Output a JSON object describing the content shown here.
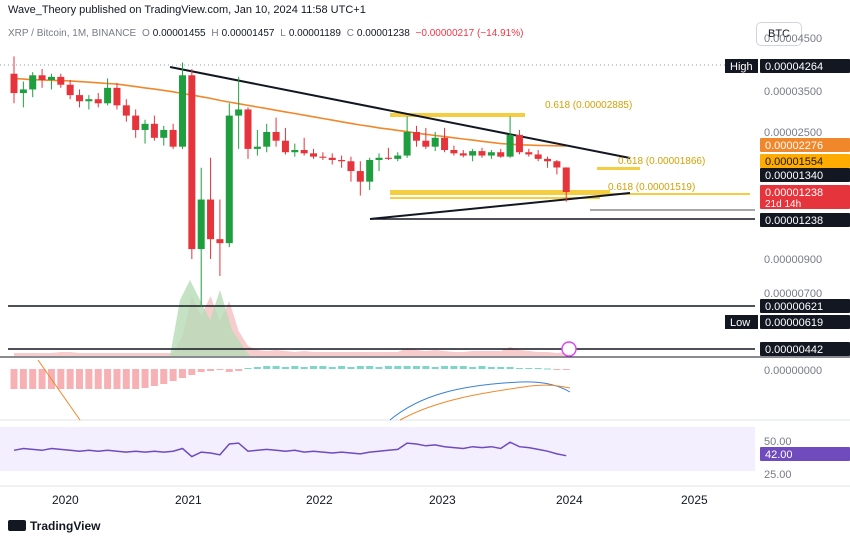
{
  "caption": "Wave_Theory published on TradingView.com, Jan 10, 2024 11:58 UTC+1",
  "legend": {
    "symbol": "XRP / Bitcoin, 1M, BINANCE",
    "open_label": "O",
    "open": "0.00001455",
    "high_label": "H",
    "high": "0.00001457",
    "low_label": "L",
    "low": "0.00001189",
    "close_label": "C",
    "close": "0.00001238",
    "change": "−0.00000217 (−14.91%)"
  },
  "currency_button": "BTC",
  "footer": "TradingView",
  "colors": {
    "up": "#26a69a",
    "up_body": "#1e9e3e",
    "down": "#e5343b",
    "ema": "#f0882b",
    "fib": "#f2c012",
    "trend": "#131722",
    "macd": "#3a7fd9",
    "signal": "#f0882b",
    "rsi": "#6f4bbd",
    "alert_icon": "#e040fb"
  },
  "chart_data": {
    "type": "candlestick",
    "timeframe": "1M",
    "x_axis_labels": [
      "2020",
      "2021",
      "2022",
      "2023",
      "2024",
      "2025"
    ],
    "y_axis_labels": [
      "0.00004500",
      "0.00003500",
      "0.00002500",
      "0.00000900",
      "0.00000700",
      "0.00000000",
      "50.00",
      "25.00"
    ],
    "price_tags": [
      {
        "label": "High",
        "value": "0.00004264",
        "style": "dark"
      },
      {
        "value": "0.00002276",
        "style": "orange"
      },
      {
        "value": "0.00001554",
        "style": "yellow"
      },
      {
        "value": "0.00001340",
        "style": "dark"
      },
      {
        "value": "0.00001238",
        "sub": "21d 14h",
        "style": "red"
      },
      {
        "value": "0.00001238",
        "style": "dark"
      },
      {
        "value": "0.00000621",
        "style": "dark"
      },
      {
        "label": "Low",
        "value": "0.00000619",
        "style": "dark"
      },
      {
        "value": "0.00000442",
        "style": "dark"
      },
      {
        "value": "42.00",
        "style": "purple"
      }
    ],
    "fib_labels": [
      {
        "text": "0.618 (0.00002885)",
        "value": 2.885e-05
      },
      {
        "text": "0.618 (0.00001866)",
        "value": 1.866e-05
      },
      {
        "text": "0.618 (0.00001519)",
        "value": 1.519e-05
      }
    ],
    "candles": [
      {
        "o": 4.05,
        "h": 4.35,
        "l": 3.2,
        "c": 3.45
      },
      {
        "o": 3.45,
        "h": 3.8,
        "l": 3.1,
        "c": 3.55
      },
      {
        "o": 3.55,
        "h": 4.1,
        "l": 3.35,
        "c": 4.0
      },
      {
        "o": 4.0,
        "h": 4.2,
        "l": 3.6,
        "c": 3.85
      },
      {
        "o": 3.85,
        "h": 4.05,
        "l": 3.55,
        "c": 3.95
      },
      {
        "o": 3.95,
        "h": 4.05,
        "l": 3.6,
        "c": 3.7
      },
      {
        "o": 3.7,
        "h": 3.85,
        "l": 3.3,
        "c": 3.4
      },
      {
        "o": 3.4,
        "h": 3.55,
        "l": 3.1,
        "c": 3.25
      },
      {
        "o": 3.25,
        "h": 3.4,
        "l": 3.05,
        "c": 3.3
      },
      {
        "o": 3.3,
        "h": 3.45,
        "l": 3.1,
        "c": 3.2
      },
      {
        "o": 3.2,
        "h": 3.9,
        "l": 3.15,
        "c": 3.6
      },
      {
        "o": 3.6,
        "h": 3.75,
        "l": 3.05,
        "c": 3.15
      },
      {
        "o": 3.15,
        "h": 3.3,
        "l": 2.75,
        "c": 2.9
      },
      {
        "o": 2.9,
        "h": 3.05,
        "l": 2.4,
        "c": 2.55
      },
      {
        "o": 2.55,
        "h": 2.8,
        "l": 2.3,
        "c": 2.7
      },
      {
        "o": 2.7,
        "h": 2.9,
        "l": 2.35,
        "c": 2.4
      },
      {
        "o": 2.4,
        "h": 2.65,
        "l": 2.25,
        "c": 2.55
      },
      {
        "o": 2.55,
        "h": 2.7,
        "l": 2.1,
        "c": 2.2
      },
      {
        "o": 2.2,
        "h": 4.3,
        "l": 2.1,
        "c": 4.0
      },
      {
        "o": 4.0,
        "h": 4.2,
        "l": 0.9,
        "c": 0.95
      },
      {
        "o": 0.95,
        "h": 1.45,
        "l": 0.62,
        "c": 1.2
      },
      {
        "o": 1.2,
        "h": 1.7,
        "l": 0.9,
        "c": 1.0
      },
      {
        "o": 1.0,
        "h": 1.2,
        "l": 0.8,
        "c": 0.98
      },
      {
        "o": 0.98,
        "h": 3.2,
        "l": 0.96,
        "c": 2.9
      },
      {
        "o": 2.9,
        "h": 3.95,
        "l": 2.1,
        "c": 3.05
      },
      {
        "o": 3.05,
        "h": 3.1,
        "l": 1.65,
        "c": 2.1
      },
      {
        "o": 2.1,
        "h": 2.55,
        "l": 1.8,
        "c": 2.2
      },
      {
        "o": 2.2,
        "h": 2.7,
        "l": 1.95,
        "c": 2.5
      },
      {
        "o": 2.5,
        "h": 2.85,
        "l": 2.2,
        "c": 2.35
      },
      {
        "o": 2.35,
        "h": 2.6,
        "l": 1.85,
        "c": 1.95
      },
      {
        "o": 1.95,
        "h": 2.3,
        "l": 1.75,
        "c": 2.05
      },
      {
        "o": 2.05,
        "h": 2.4,
        "l": 1.8,
        "c": 1.9
      },
      {
        "o": 1.9,
        "h": 2.1,
        "l": 1.65,
        "c": 1.75
      },
      {
        "o": 1.75,
        "h": 1.95,
        "l": 1.6,
        "c": 1.7
      },
      {
        "o": 1.7,
        "h": 1.9,
        "l": 1.5,
        "c": 1.6
      },
      {
        "o": 1.6,
        "h": 1.8,
        "l": 1.45,
        "c": 1.55
      },
      {
        "o": 1.55,
        "h": 1.75,
        "l": 1.3,
        "c": 1.4
      },
      {
        "o": 1.4,
        "h": 1.55,
        "l": 1.22,
        "c": 1.3
      },
      {
        "o": 1.3,
        "h": 1.7,
        "l": 1.25,
        "c": 1.6
      },
      {
        "o": 1.6,
        "h": 1.9,
        "l": 1.4,
        "c": 1.7
      },
      {
        "o": 1.7,
        "h": 2.15,
        "l": 1.6,
        "c": 1.65
      },
      {
        "o": 1.65,
        "h": 1.95,
        "l": 1.55,
        "c": 1.8
      },
      {
        "o": 1.8,
        "h": 2.88,
        "l": 1.7,
        "c": 2.5
      },
      {
        "o": 2.5,
        "h": 2.65,
        "l": 2.2,
        "c": 2.35
      },
      {
        "o": 2.35,
        "h": 2.6,
        "l": 2.1,
        "c": 2.2
      },
      {
        "o": 2.2,
        "h": 2.5,
        "l": 2.0,
        "c": 2.4
      },
      {
        "o": 2.4,
        "h": 2.6,
        "l": 1.95,
        "c": 2.05
      },
      {
        "o": 2.05,
        "h": 2.25,
        "l": 1.8,
        "c": 1.9
      },
      {
        "o": 1.9,
        "h": 2.05,
        "l": 1.72,
        "c": 1.8
      },
      {
        "o": 1.8,
        "h": 2.1,
        "l": 1.55,
        "c": 2.0
      },
      {
        "o": 2.0,
        "h": 2.15,
        "l": 1.7,
        "c": 1.8
      },
      {
        "o": 1.8,
        "h": 2.05,
        "l": 1.65,
        "c": 1.95
      },
      {
        "o": 1.95,
        "h": 2.1,
        "l": 1.7,
        "c": 1.75
      },
      {
        "o": 1.75,
        "h": 2.88,
        "l": 1.7,
        "c": 2.45
      },
      {
        "o": 2.45,
        "h": 2.55,
        "l": 1.85,
        "c": 1.95
      },
      {
        "o": 1.95,
        "h": 2.1,
        "l": 1.75,
        "c": 1.85
      },
      {
        "o": 1.85,
        "h": 2.05,
        "l": 1.55,
        "c": 1.65
      },
      {
        "o": 1.65,
        "h": 1.75,
        "l": 1.45,
        "c": 1.55
      },
      {
        "o": 1.55,
        "h": 1.6,
        "l": 1.35,
        "c": 1.455
      },
      {
        "o": 1.455,
        "h": 1.457,
        "l": 1.189,
        "c": 1.238
      }
    ],
    "ema": [
      3.9,
      3.88,
      3.86,
      3.85,
      3.84,
      3.83,
      3.82,
      3.8,
      3.78,
      3.76,
      3.74,
      3.72,
      3.68,
      3.64,
      3.6,
      3.56,
      3.52,
      3.48,
      3.44,
      3.4,
      3.36,
      3.32,
      3.27,
      3.23,
      3.19,
      3.15,
      3.11,
      3.07,
      3.03,
      2.99,
      2.95,
      2.91,
      2.87,
      2.83,
      2.79,
      2.75,
      2.71,
      2.67,
      2.64,
      2.6,
      2.57,
      2.54,
      2.51,
      2.48,
      2.46,
      2.44,
      2.42,
      2.4,
      2.38,
      2.36,
      2.34,
      2.32,
      2.3,
      2.29,
      2.28,
      2.27,
      2.26,
      2.25,
      2.24,
      2.23
    ],
    "macd_hist": [
      -2,
      -2,
      -2,
      -2,
      -2,
      -2,
      -2,
      -2,
      -2,
      -2,
      -2,
      -2,
      -2,
      -2,
      -1.9,
      -1.7,
      -1.5,
      -1.2,
      -0.9,
      -0.6,
      -0.3,
      -0.2,
      -0.1,
      -0.3,
      -0.2,
      0.1,
      0.2,
      0.3,
      0.3,
      0.2,
      0.3,
      0.2,
      0.3,
      0.3,
      0.2,
      0.3,
      0.2,
      0.3,
      0.3,
      0.2,
      0.3,
      0.3,
      0.3,
      0.3,
      0.3,
      0.2,
      0.3,
      0.3,
      0.3,
      0.2,
      0.3,
      0.2,
      0.2,
      0.2,
      0.1,
      0.1,
      0.1,
      0.05,
      -0.05,
      -0.1
    ],
    "rsi": [
      48,
      50,
      49,
      48,
      50,
      49,
      48,
      47,
      48,
      47,
      48,
      47,
      46,
      47,
      46,
      47,
      46,
      47,
      50,
      41,
      46,
      45,
      43,
      55,
      56,
      47,
      48,
      49,
      48,
      47,
      48,
      46,
      47,
      46,
      45,
      46,
      45,
      44,
      46,
      47,
      48,
      49,
      56,
      55,
      53,
      54,
      52,
      51,
      50,
      52,
      51,
      52,
      50,
      57,
      52,
      51,
      49,
      47,
      44,
      42
    ]
  }
}
